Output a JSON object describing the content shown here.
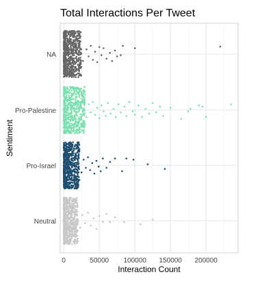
{
  "chart_data": {
    "type": "scatter",
    "title": "Total Interactions Per Tweet",
    "xlabel": "Interaction Count",
    "ylabel": "Sentiment",
    "xlim": [
      -5000,
      245000
    ],
    "x_ticks": [
      0,
      50000,
      100000,
      150000,
      200000
    ],
    "categories": [
      "NA",
      "Pro-Palestine",
      "Pro-Israel",
      "Neutral"
    ],
    "jitter": "vertical within category band",
    "grid": true,
    "series": [
      {
        "name": "NA",
        "color": "#666666",
        "dense_range": [
          0,
          25000
        ],
        "values": [
          [
            27000,
            0.3
          ],
          [
            32000,
            -0.2
          ],
          [
            35000,
            0.1
          ],
          [
            38000,
            -0.35
          ],
          [
            41000,
            0.25
          ],
          [
            44000,
            -0.1
          ],
          [
            47000,
            0.35
          ],
          [
            50000,
            -0.3
          ],
          [
            53000,
            0.05
          ],
          [
            56000,
            -0.25
          ],
          [
            60000,
            0.2
          ],
          [
            65000,
            -0.05
          ],
          [
            68000,
            0.3
          ],
          [
            72000,
            -0.15
          ],
          [
            75000,
            0.1
          ],
          [
            80000,
            0.05
          ],
          [
            83000,
            -0.35
          ],
          [
            100000,
            -0.25
          ],
          [
            220000,
            -0.32
          ]
        ]
      },
      {
        "name": "Pro-Palestine",
        "color": "#7ee0b0",
        "dense_range": [
          0,
          30000
        ],
        "values": [
          [
            32000,
            0.3
          ],
          [
            35000,
            -0.25
          ],
          [
            38000,
            0.1
          ],
          [
            41000,
            -0.35
          ],
          [
            44000,
            0.2
          ],
          [
            47000,
            -0.1
          ],
          [
            50000,
            0.35
          ],
          [
            53000,
            -0.2
          ],
          [
            56000,
            0.05
          ],
          [
            59000,
            0.25
          ],
          [
            62000,
            -0.3
          ],
          [
            66000,
            0.15
          ],
          [
            70000,
            -0.05
          ],
          [
            73000,
            0.3
          ],
          [
            77000,
            -0.25
          ],
          [
            80000,
            0.1
          ],
          [
            85000,
            -0.15
          ],
          [
            88000,
            0.25
          ],
          [
            92000,
            -0.35
          ],
          [
            97000,
            0.05
          ],
          [
            100000,
            0.2
          ],
          [
            105000,
            -0.2
          ],
          [
            110000,
            0.3
          ],
          [
            115000,
            -0.05
          ],
          [
            120000,
            0.15
          ],
          [
            125000,
            -0.3
          ],
          [
            130000,
            0.1
          ],
          [
            135000,
            -0.15
          ],
          [
            140000,
            0.25
          ],
          [
            150000,
            -0.1
          ],
          [
            165000,
            0.38
          ],
          [
            175000,
            0.05
          ],
          [
            178000,
            -0.05
          ],
          [
            190000,
            -0.2
          ],
          [
            195000,
            -0.15
          ],
          [
            200000,
            0.3
          ],
          [
            235000,
            -0.25
          ]
        ]
      },
      {
        "name": "Pro-Israel",
        "color": "#1f4e6e",
        "dense_range": [
          0,
          22000
        ],
        "values": [
          [
            25000,
            0.3
          ],
          [
            28000,
            -0.25
          ],
          [
            31000,
            0.1
          ],
          [
            34000,
            -0.35
          ],
          [
            37000,
            0.2
          ],
          [
            40000,
            -0.1
          ],
          [
            43000,
            0.35
          ],
          [
            46000,
            -0.2
          ],
          [
            49000,
            0.05
          ],
          [
            52000,
            0.25
          ],
          [
            55000,
            -0.3
          ],
          [
            60000,
            0.1
          ],
          [
            65000,
            -0.15
          ],
          [
            72000,
            -0.3
          ],
          [
            82000,
            0.25
          ],
          [
            88000,
            -0.3
          ],
          [
            98000,
            -0.25
          ],
          [
            118000,
            -0.05
          ],
          [
            142000,
            0.15
          ]
        ]
      },
      {
        "name": "Neutral",
        "color": "#c8c8c8",
        "dense_range": [
          0,
          20000
        ],
        "values": [
          [
            23000,
            0.3
          ],
          [
            26000,
            -0.25
          ],
          [
            30000,
            0.1
          ],
          [
            34000,
            -0.35
          ],
          [
            38000,
            0.2
          ],
          [
            42000,
            -0.1
          ],
          [
            46000,
            0.35
          ],
          [
            50000,
            -0.2
          ],
          [
            55000,
            0.05
          ],
          [
            60000,
            -0.3
          ],
          [
            65000,
            0.05
          ],
          [
            72000,
            -0.15
          ],
          [
            85000,
            0.05
          ],
          [
            108000,
            0.15
          ],
          [
            125000,
            -0.05
          ]
        ]
      }
    ]
  }
}
